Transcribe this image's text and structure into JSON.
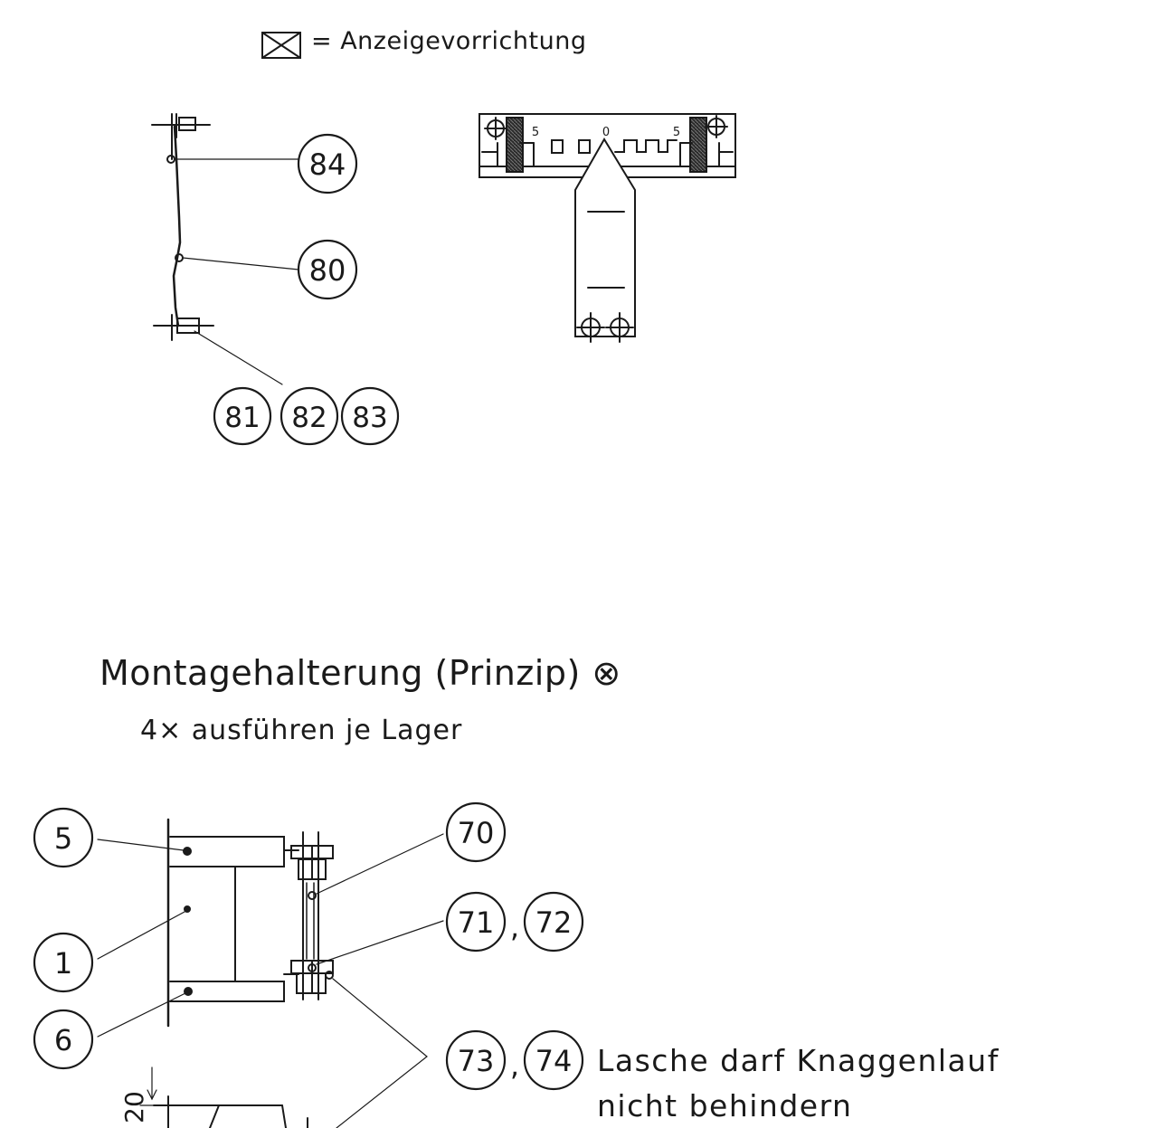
{
  "legend": {
    "symbol_icon": "crossed-box-icon",
    "text": "= Anzeigevorrichtung"
  },
  "top_left": {
    "labels": [
      "84",
      "80",
      "81",
      "82",
      "83"
    ]
  },
  "scale": {
    "left": "5",
    "center": "0",
    "right": "5"
  },
  "title": "Montagehalterung (Prinzip)",
  "title_symbol": "⊗",
  "subtitle": "4× ausführen je Lager",
  "bottom": {
    "labels": [
      "5",
      "1",
      "6",
      "70",
      "71",
      "72",
      "73",
      "74"
    ],
    "separator": ",",
    "dimension": "20"
  },
  "note": {
    "line1": "Lasche darf Knaggenlauf",
    "line2": "nicht behindern"
  },
  "colors": {
    "ink": "#1a1a1a",
    "paper": "#ffffff"
  }
}
